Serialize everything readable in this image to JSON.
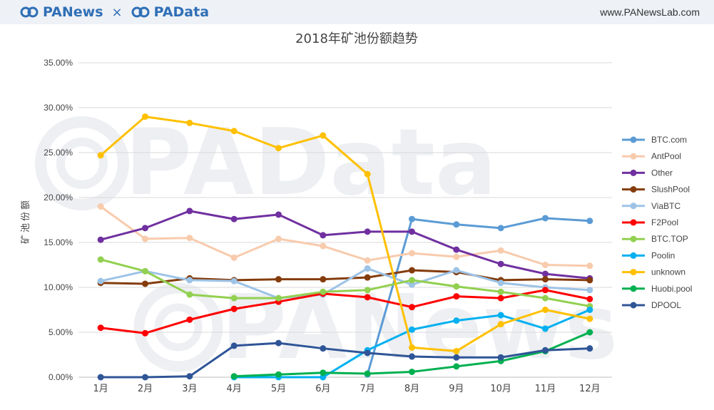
{
  "header": {
    "brand_left": "PANews",
    "brand_sep": "×",
    "brand_right": "PAData",
    "site": "www.PANewsLab.com"
  },
  "watermarks": [
    "PAData",
    "PANews"
  ],
  "colors": {
    "BTC.com": "#5b9bd5",
    "AntPool": "#f8cbad",
    "Other": "#7030a0",
    "SlushPool": "#843c0c",
    "ViaBTC": "#9dc3e6",
    "F2Pool": "#ff0000",
    "BTC.TOP": "#92d050",
    "Poolin": "#00b0f0",
    "unknown": "#ffc000",
    "Huobi.pool": "#00b050",
    "DPOOL": "#2f5597"
  },
  "chart_data": {
    "type": "line",
    "title": "2018年矿池份额趋势",
    "xlabel": "",
    "ylabel": "矿池份额",
    "ylim": [
      0,
      0.35
    ],
    "yticks": [
      "0.00%",
      "5.00%",
      "10.00%",
      "15.00%",
      "20.00%",
      "25.00%",
      "30.00%",
      "35.00%"
    ],
    "grid": true,
    "legend_position": "right",
    "categories": [
      "1月",
      "2月",
      "3月",
      "4月",
      "5月",
      "6月",
      "7月",
      "8月",
      "9月",
      "10月",
      "11月",
      "12月"
    ],
    "series": [
      {
        "name": "BTC.com",
        "values": [
          null,
          null,
          null,
          null,
          null,
          null,
          0.003,
          0.176,
          0.17,
          0.166,
          0.177,
          0.174
        ]
      },
      {
        "name": "AntPool",
        "values": [
          0.19,
          0.154,
          0.155,
          0.133,
          0.154,
          0.146,
          0.13,
          0.138,
          0.134,
          0.141,
          0.125,
          0.124
        ]
      },
      {
        "name": "Other",
        "values": [
          0.153,
          0.166,
          0.185,
          0.176,
          0.181,
          0.158,
          0.162,
          0.162,
          0.142,
          0.126,
          0.115,
          0.11
        ]
      },
      {
        "name": "SlushPool",
        "values": [
          0.105,
          0.104,
          0.11,
          0.108,
          0.109,
          0.109,
          0.111,
          0.119,
          0.117,
          0.108,
          0.109,
          0.108
        ]
      },
      {
        "name": "ViaBTC",
        "values": [
          0.107,
          0.118,
          0.108,
          0.107,
          0.088,
          0.092,
          0.121,
          0.103,
          0.119,
          0.105,
          0.1,
          0.097
        ]
      },
      {
        "name": "F2Pool",
        "values": [
          0.055,
          0.049,
          0.064,
          0.076,
          0.084,
          0.093,
          0.089,
          0.078,
          0.09,
          0.088,
          0.097,
          0.087
        ]
      },
      {
        "name": "BTC.TOP",
        "values": [
          0.131,
          0.118,
          0.092,
          0.088,
          0.088,
          0.095,
          0.097,
          0.108,
          0.101,
          0.095,
          0.088,
          0.079
        ]
      },
      {
        "name": "Poolin",
        "values": [
          null,
          null,
          null,
          0.0,
          0.0,
          0.0,
          0.03,
          0.053,
          0.063,
          0.069,
          0.054,
          0.075
        ]
      },
      {
        "name": "unknown",
        "values": [
          0.247,
          0.29,
          0.283,
          0.274,
          0.255,
          0.269,
          0.226,
          0.033,
          0.029,
          0.059,
          0.075,
          0.065
        ]
      },
      {
        "name": "Huobi.pool",
        "values": [
          null,
          null,
          null,
          0.001,
          0.003,
          0.005,
          0.004,
          0.006,
          0.012,
          0.018,
          0.029,
          0.05
        ]
      },
      {
        "name": "DPOOL",
        "values": [
          0.0,
          0.0,
          0.001,
          0.035,
          0.038,
          0.032,
          0.027,
          0.023,
          0.022,
          0.022,
          0.03,
          0.032
        ]
      }
    ]
  }
}
